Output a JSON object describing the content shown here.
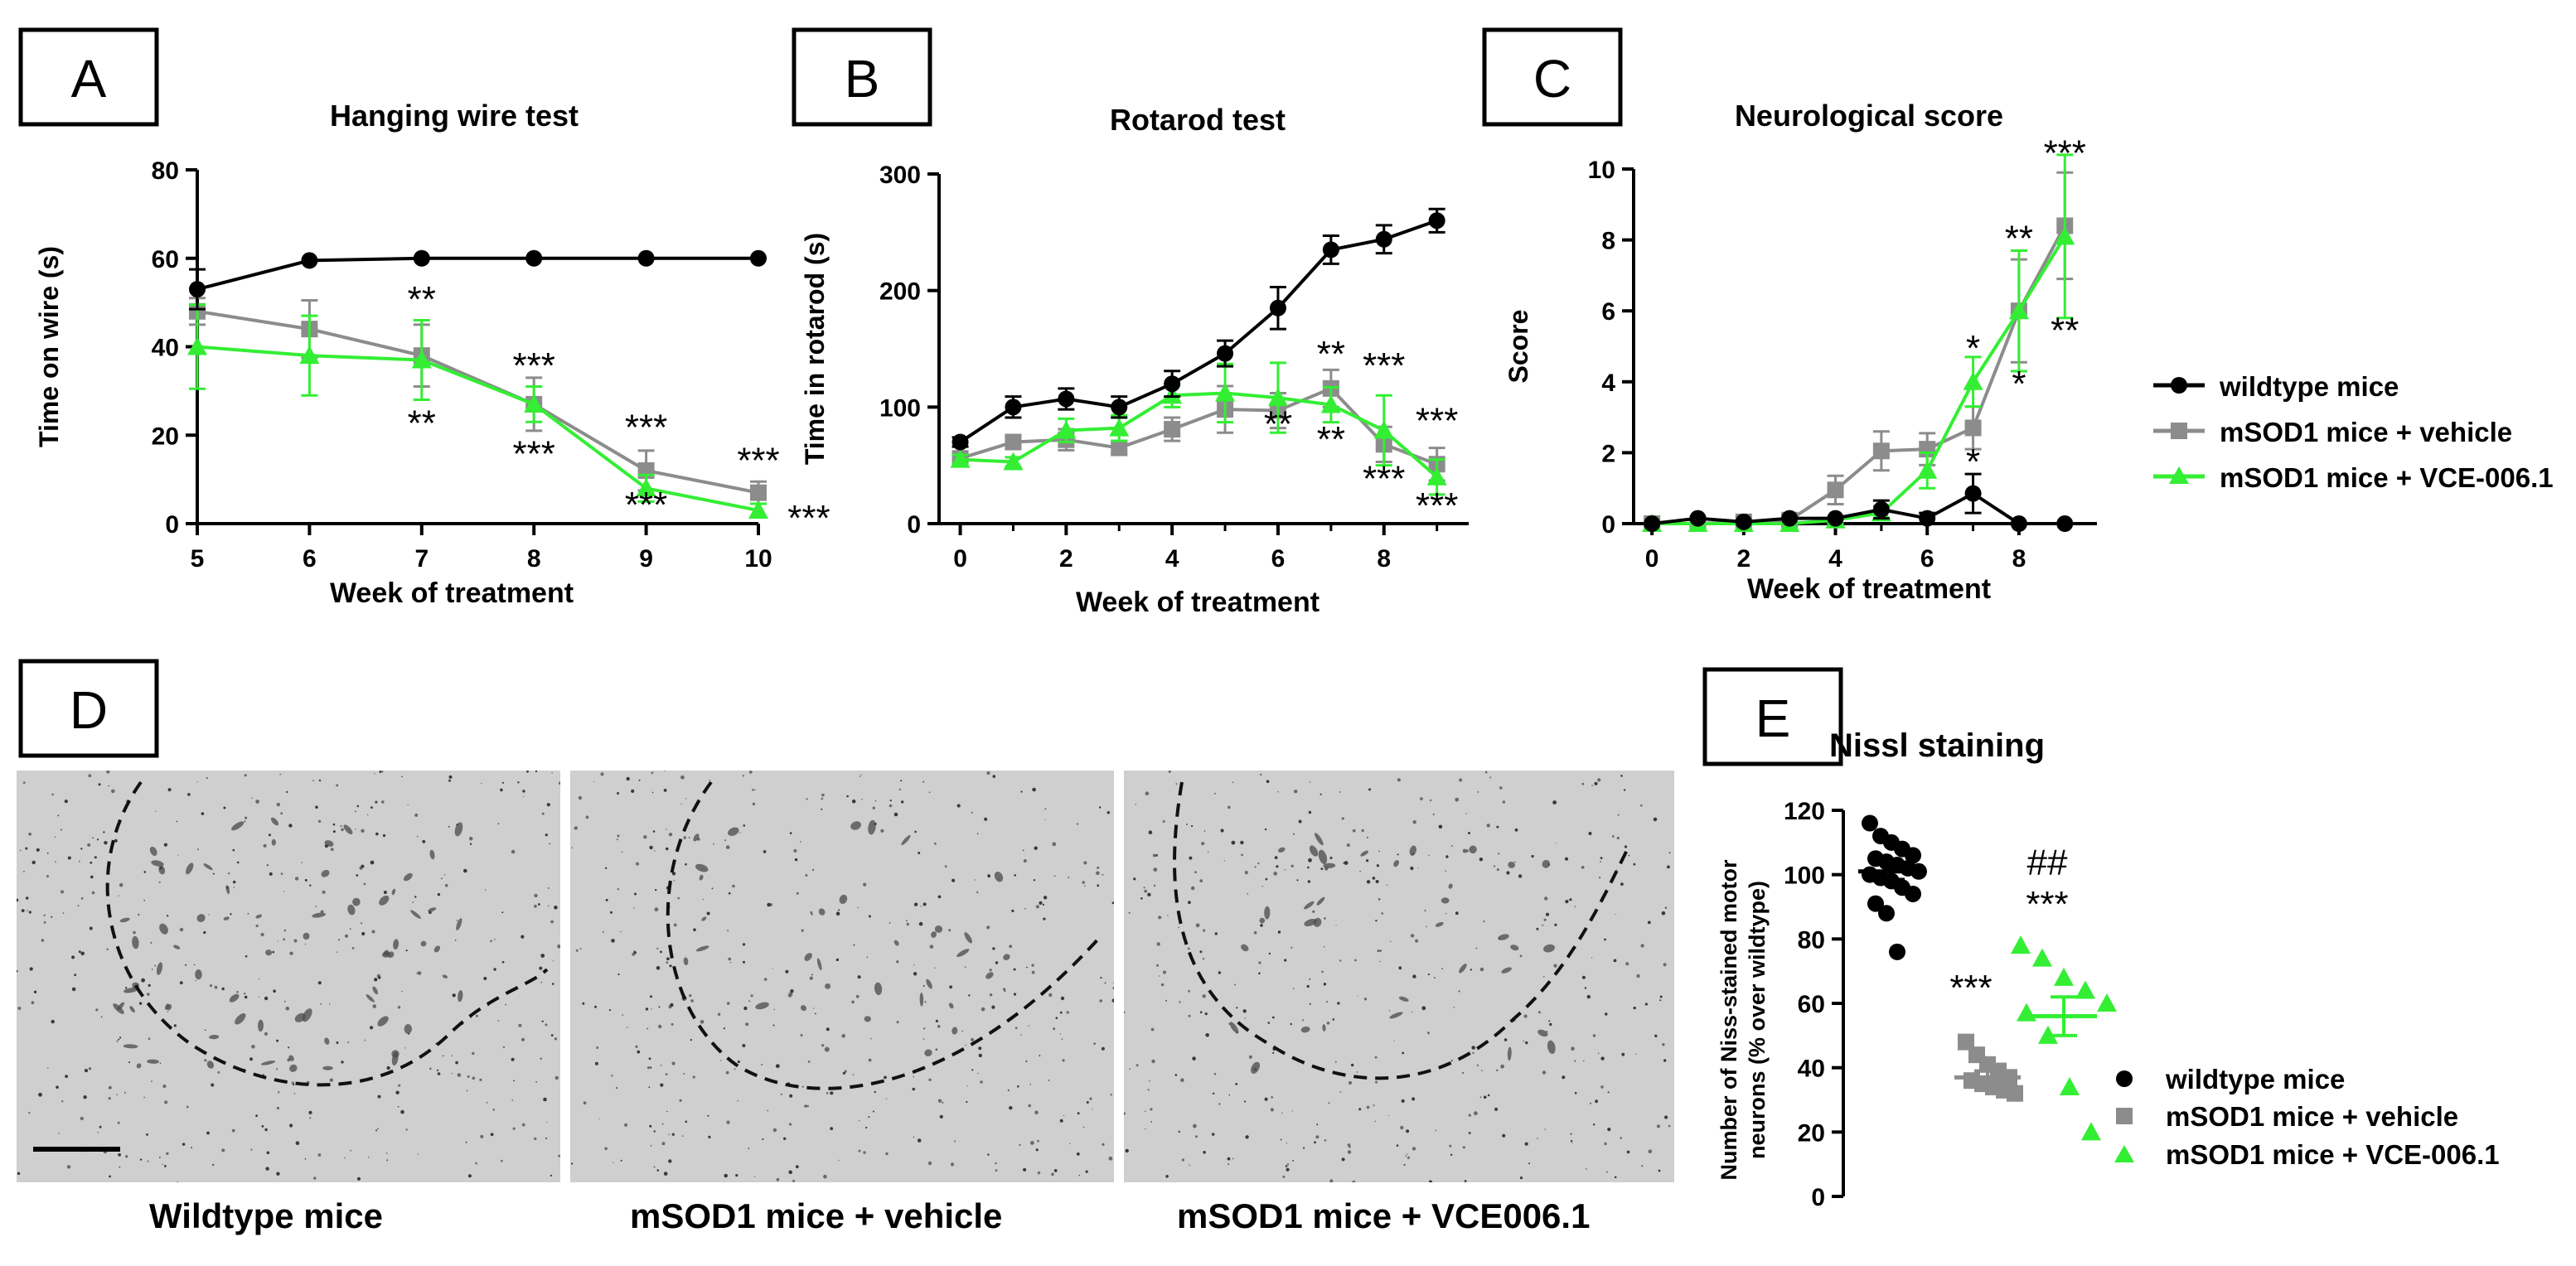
{
  "colors": {
    "wildtype": "#000000",
    "vehicle": "#8c8c8c",
    "vce": "#33ee33",
    "micrograph_bg": "#cfcfcf"
  },
  "panel_letters": {
    "A": "A",
    "B": "B",
    "C": "C",
    "D": "D",
    "E": "E"
  },
  "legend_1": [
    "wildtype mice",
    "mSOD1 mice + vehicle",
    "mSOD1 mice + VCE-006.1"
  ],
  "legend_2": [
    "wildtype mice",
    "mSOD1 mice + vehicle",
    "mSOD1 mice + VCE-006.1"
  ],
  "chart_data": [
    {
      "panel": "A",
      "type": "line",
      "title": "Hanging wire test",
      "xlabel": "Week of treatment",
      "ylabel": "Time on wire (s)",
      "xlim": [
        5,
        10
      ],
      "ylim": [
        0,
        80
      ],
      "xticks": [
        5,
        6,
        7,
        8,
        9,
        10
      ],
      "yticks": [
        0,
        20,
        40,
        60,
        80
      ],
      "series": [
        {
          "name": "wildtype mice",
          "x": [
            5,
            6,
            7,
            8,
            9,
            10
          ],
          "y": [
            53,
            59.5,
            60,
            60,
            60,
            60
          ],
          "err": [
            4.5,
            0,
            0,
            0,
            0,
            0
          ]
        },
        {
          "name": "mSOD1 mice + vehicle",
          "x": [
            5,
            6,
            7,
            8,
            9,
            10
          ],
          "y": [
            48,
            44,
            38,
            27,
            12,
            7
          ],
          "err": [
            3,
            6.5,
            7,
            6,
            4.5,
            2.5
          ]
        },
        {
          "name": "mSOD1 mice + VCE-006.1",
          "x": [
            5,
            6,
            7,
            8,
            9,
            10
          ],
          "y": [
            40,
            38,
            37,
            27,
            8,
            3
          ],
          "err": [
            9.5,
            9,
            9,
            4,
            3,
            1.5
          ]
        }
      ],
      "annotations": [
        {
          "text": "**",
          "x": 7,
          "y": 48
        },
        {
          "text": "**",
          "x": 7,
          "y": 20
        },
        {
          "text": "***",
          "x": 8,
          "y": 33
        },
        {
          "text": "***",
          "x": 8,
          "y": 13
        },
        {
          "text": "***",
          "x": 9,
          "y": 19
        },
        {
          "text": "***",
          "x": 9,
          "y": 1.5
        },
        {
          "text": "***",
          "x": 10,
          "y": 11.5
        },
        {
          "text": "***",
          "x": 10.45,
          "y": -1.5
        }
      ]
    },
    {
      "panel": "B",
      "type": "line",
      "title": "Rotarod test",
      "xlabel": "Week of treatment",
      "ylabel": "Time in rotarod (s)",
      "xlim": [
        -0.4,
        9.6
      ],
      "ylim": [
        0,
        300
      ],
      "xticks": [
        0,
        2,
        4,
        6,
        8
      ],
      "yticks": [
        0,
        100,
        200,
        300
      ],
      "series": [
        {
          "name": "wildtype mice",
          "x": [
            0,
            1,
            2,
            3,
            4,
            5,
            6,
            7,
            8,
            9
          ],
          "y": [
            70,
            100,
            107,
            100,
            120,
            146,
            185,
            235,
            244,
            260
          ],
          "err": [
            4,
            9,
            9,
            9,
            11,
            11,
            18,
            12,
            12,
            10
          ]
        },
        {
          "name": "mSOD1 mice + vehicle",
          "x": [
            0,
            1,
            2,
            3,
            4,
            5,
            6,
            7,
            8,
            9
          ],
          "y": [
            56,
            70,
            72,
            65,
            81,
            98,
            97,
            116,
            68,
            51
          ],
          "err": [
            4,
            6,
            9,
            5,
            10,
            20,
            15,
            16,
            15,
            14
          ]
        },
        {
          "name": "mSOD1 mice + VCE-006.1",
          "x": [
            0,
            1,
            2,
            3,
            4,
            5,
            6,
            7,
            8,
            9
          ],
          "y": [
            55,
            53,
            80,
            82,
            110,
            112,
            108,
            102,
            80,
            40
          ],
          "err": [
            4,
            4,
            10,
            11,
            10,
            25,
            30,
            15,
            30,
            15
          ]
        }
      ],
      "annotations": [
        {
          "text": "**",
          "x": 7,
          "y": 135
        },
        {
          "text": "**",
          "x": 6,
          "y": 75
        },
        {
          "text": "**",
          "x": 7,
          "y": 62
        },
        {
          "text": "***",
          "x": 8,
          "y": 125
        },
        {
          "text": "***",
          "x": 8,
          "y": 28
        },
        {
          "text": "***",
          "x": 9,
          "y": 78
        },
        {
          "text": "***",
          "x": 9,
          "y": 5
        }
      ]
    },
    {
      "panel": "C",
      "type": "line",
      "title": "Neurological score",
      "xlabel": "Week of treatment",
      "ylabel": "Score",
      "xlim": [
        -0.4,
        9.7
      ],
      "ylim": [
        0,
        10
      ],
      "xticks": [
        0,
        2,
        4,
        6,
        8
      ],
      "yticks": [
        0,
        2,
        4,
        6,
        8,
        10
      ],
      "series": [
        {
          "name": "wildtype mice",
          "x": [
            0,
            1,
            2,
            3,
            4,
            5,
            6,
            7,
            8,
            9
          ],
          "y": [
            0,
            0.15,
            0.05,
            0.15,
            0.15,
            0.4,
            0.15,
            0.85,
            0,
            0
          ],
          "err": [
            0,
            0,
            0,
            0,
            0,
            0.25,
            0.15,
            0.55,
            0,
            0
          ]
        },
        {
          "name": "mSOD1 mice + vehicle",
          "x": [
            0,
            1,
            2,
            3,
            4,
            5,
            6,
            7,
            8,
            9
          ],
          "y": [
            0,
            0,
            0.05,
            0.1,
            0.95,
            2.05,
            2.1,
            2.7,
            6,
            8.4
          ],
          "err": [
            0,
            0,
            0.1,
            0.15,
            0.4,
            0.55,
            0.45,
            0.6,
            1.45,
            1.5
          ]
        },
        {
          "name": "mSOD1 mice + VCE-006.1",
          "x": [
            0,
            1,
            2,
            3,
            4,
            5,
            6,
            7,
            8,
            9
          ],
          "y": [
            0,
            0,
            0,
            0,
            0.1,
            0.3,
            1.5,
            4,
            6,
            8.1
          ],
          "err": [
            0,
            0,
            0,
            0,
            0.1,
            0.2,
            0.5,
            0.7,
            1.7,
            2.3
          ]
        }
      ],
      "annotations": [
        {
          "text": "*",
          "x": 7,
          "y": 4.6
        },
        {
          "text": "*",
          "x": 7,
          "y": 1.4
        },
        {
          "text": "**",
          "x": 8,
          "y": 7.7
        },
        {
          "text": "*",
          "x": 8,
          "y": 3.6
        },
        {
          "text": "***",
          "x": 9,
          "y": 10.1
        },
        {
          "text": "**",
          "x": 9,
          "y": 5.1
        }
      ]
    },
    {
      "panel": "E",
      "type": "scatter",
      "title": "Nissl staining",
      "ylabel": "Number of Niss-stained motor neurons (% over wildtype)",
      "ylim": [
        0,
        120
      ],
      "yticks": [
        0,
        20,
        40,
        60,
        80,
        100,
        120
      ],
      "series": [
        {
          "name": "wildtype mice",
          "values": [
            116,
            112,
            110,
            108,
            106,
            105,
            104,
            103,
            102,
            101,
            100,
            99,
            98,
            96,
            94,
            91,
            88,
            76
          ],
          "mean": 101,
          "sem": 2.5
        },
        {
          "name": "mSOD1 mice + vehicle",
          "values": [
            48,
            44,
            41,
            39,
            37,
            36,
            35,
            34,
            33,
            32
          ],
          "mean": 37,
          "sem": 2
        },
        {
          "name": "mSOD1 mice + VCE-006.1",
          "values": [
            78,
            74,
            68,
            64,
            60,
            57,
            50,
            34,
            20
          ],
          "mean": 56,
          "sem": 6
        }
      ],
      "annotations": [
        {
          "text": "***",
          "group": 1,
          "y": 61
        },
        {
          "text": "***",
          "group": 2,
          "y": 87
        },
        {
          "text": "##",
          "group": 2,
          "y": 100
        }
      ]
    }
  ],
  "micrographs": {
    "captions": [
      "Wildtype mice",
      "mSOD1 mice + vehicle",
      "mSOD1 mice + VCE006.1"
    ]
  }
}
